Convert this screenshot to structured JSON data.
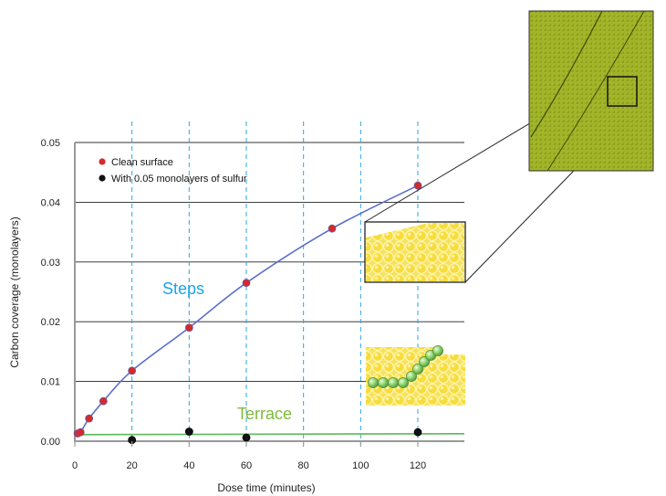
{
  "chart_data": {
    "type": "scatter",
    "xlabel": "Dose time (minutes)",
    "ylabel": "Carbon coverage (monolayers)",
    "xlim": [
      0,
      135
    ],
    "ylim": [
      0,
      0.05
    ],
    "x_ticks": [
      "0",
      "20",
      "40",
      "60",
      "80",
      "100",
      "120"
    ],
    "y_ticks": [
      "0.00",
      "0.01",
      "0.02",
      "0.03",
      "0.04",
      "0.05"
    ],
    "grid": true,
    "legend_position": "top-left",
    "series": [
      {
        "name": "Clean surface",
        "color": "#d42a2a",
        "points": [
          {
            "x": 1,
            "y": 0.0013
          },
          {
            "x": 2,
            "y": 0.0015
          },
          {
            "x": 5,
            "y": 0.0038
          },
          {
            "x": 10,
            "y": 0.0067
          },
          {
            "x": 20,
            "y": 0.0118
          },
          {
            "x": 40,
            "y": 0.019
          },
          {
            "x": 60,
            "y": 0.0265
          },
          {
            "x": 90,
            "y": 0.0356
          },
          {
            "x": 120,
            "y": 0.0428
          }
        ]
      },
      {
        "name": "With 0.05 monolayers of sulfur",
        "color": "#111111",
        "points": [
          {
            "x": 20,
            "y": 0.0002
          },
          {
            "x": 40,
            "y": 0.0016
          },
          {
            "x": 60,
            "y": 0.0006
          },
          {
            "x": 120,
            "y": 0.0015
          }
        ]
      }
    ],
    "fit_lines": [
      {
        "label": "Steps",
        "color": "#5b6fc9",
        "label_color": "#1aa3e8"
      },
      {
        "label": "Terrace",
        "color": "#5cb85c",
        "label_color": "#7dbb3c",
        "y": 0.0011
      }
    ],
    "vertical_guides_x": [
      20,
      40,
      60,
      80,
      100,
      120
    ],
    "guide_color": "#2aa6e0",
    "insets": [
      {
        "name": "step-atoms",
        "description_color": "#f2e04a"
      },
      {
        "name": "terrace-atoms",
        "description_color": "#f2e04a",
        "chain_color": "#8cd26a"
      },
      {
        "name": "surface-microscopy",
        "description_color": "#9fb31a"
      }
    ]
  }
}
